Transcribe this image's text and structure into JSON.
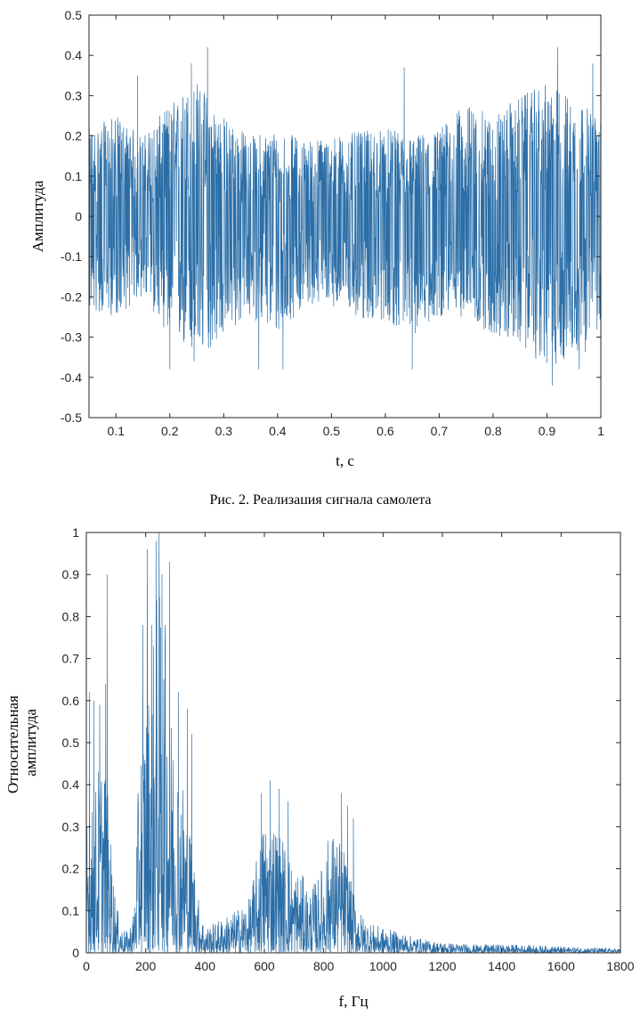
{
  "caption": "Рис. 2. Реализация сигнала самолета",
  "colors": {
    "series": "#2b6ea7",
    "axis": "#262626"
  },
  "chart_data": [
    {
      "type": "line",
      "title": "",
      "xlabel": "t, c",
      "ylabel": "Амплитуда",
      "xlim": [
        0.05,
        1
      ],
      "ylim": [
        -0.5,
        0.5
      ],
      "grid": false,
      "xticks": [
        0.1,
        0.2,
        0.3,
        0.4,
        0.5,
        0.6,
        0.7,
        0.8,
        0.9,
        1
      ],
      "xtick_labels": [
        "0.1",
        "0.2",
        "0.3",
        "0.4",
        "0.5",
        "0.6",
        "0.7",
        "0.8",
        "0.9",
        "1"
      ],
      "yticks": [
        -0.5,
        -0.4,
        -0.3,
        -0.2,
        -0.1,
        0,
        0.1,
        0.2,
        0.3,
        0.4,
        0.5
      ],
      "ytick_labels": [
        "-0.5",
        "-0.4",
        "-0.3",
        "-0.2",
        "-0.1",
        "0",
        "0.1",
        "0.2",
        "0.3",
        "0.4",
        "0.5"
      ],
      "envelope_x": [
        0.05,
        0.1,
        0.15,
        0.2,
        0.25,
        0.3,
        0.35,
        0.4,
        0.45,
        0.5,
        0.55,
        0.6,
        0.65,
        0.7,
        0.75,
        0.8,
        0.85,
        0.9,
        0.95,
        1.0
      ],
      "envelope_max": [
        0.22,
        0.25,
        0.2,
        0.28,
        0.34,
        0.25,
        0.2,
        0.22,
        0.19,
        0.2,
        0.21,
        0.22,
        0.2,
        0.22,
        0.28,
        0.25,
        0.3,
        0.33,
        0.3,
        0.24
      ],
      "envelope_min": [
        -0.24,
        -0.25,
        -0.2,
        -0.3,
        -0.36,
        -0.3,
        -0.25,
        -0.3,
        -0.22,
        -0.22,
        -0.26,
        -0.26,
        -0.3,
        -0.25,
        -0.25,
        -0.3,
        -0.32,
        -0.38,
        -0.35,
        -0.32
      ],
      "peaks": [
        [
          0.27,
          0.42
        ],
        [
          0.24,
          0.38
        ],
        [
          0.14,
          0.35
        ],
        [
          0.635,
          0.37
        ],
        [
          0.92,
          0.42
        ],
        [
          0.985,
          0.38
        ],
        [
          0.2,
          -0.38
        ],
        [
          0.245,
          -0.36
        ],
        [
          0.365,
          -0.38
        ],
        [
          0.41,
          -0.38
        ],
        [
          0.65,
          -0.38
        ],
        [
          0.91,
          -0.42
        ],
        [
          0.96,
          -0.38
        ]
      ]
    },
    {
      "type": "line",
      "title": "",
      "xlabel": "f, Гц",
      "ylabel": [
        "Относительная",
        "амплитуда"
      ],
      "xlim": [
        0,
        1800
      ],
      "ylim": [
        0,
        1
      ],
      "grid": false,
      "xticks": [
        0,
        200,
        400,
        600,
        800,
        1000,
        1200,
        1400,
        1600,
        1800
      ],
      "xtick_labels": [
        "0",
        "200",
        "400",
        "600",
        "800",
        "1000",
        "1200",
        "1400",
        "1600",
        "1800"
      ],
      "yticks": [
        0,
        0.1,
        0.2,
        0.3,
        0.4,
        0.5,
        0.6,
        0.7,
        0.8,
        0.9,
        1
      ],
      "ytick_labels": [
        "0",
        "0.1",
        "0.2",
        "0.3",
        "0.4",
        "0.5",
        "0.6",
        "0.7",
        "0.8",
        "0.9",
        "1"
      ],
      "envelope_x": [
        0,
        20,
        40,
        60,
        80,
        100,
        120,
        140,
        160,
        180,
        200,
        220,
        240,
        260,
        280,
        300,
        320,
        340,
        360,
        380,
        400,
        450,
        500,
        550,
        580,
        600,
        620,
        650,
        680,
        700,
        720,
        750,
        780,
        800,
        820,
        850,
        870,
        890,
        910,
        930,
        960,
        1000,
        1050,
        1100,
        1150,
        1200,
        1300,
        1400,
        1500,
        1600,
        1700,
        1800
      ],
      "envelope_max": [
        0.4,
        0.35,
        0.45,
        0.5,
        0.3,
        0.12,
        0.06,
        0.05,
        0.1,
        0.5,
        0.65,
        0.7,
        0.9,
        0.8,
        0.6,
        0.55,
        0.45,
        0.35,
        0.25,
        0.12,
        0.06,
        0.08,
        0.1,
        0.13,
        0.25,
        0.33,
        0.35,
        0.3,
        0.25,
        0.2,
        0.2,
        0.15,
        0.18,
        0.22,
        0.3,
        0.28,
        0.25,
        0.18,
        0.12,
        0.09,
        0.07,
        0.06,
        0.05,
        0.04,
        0.03,
        0.025,
        0.02,
        0.02,
        0.018,
        0.015,
        0.012,
        0.01
      ],
      "peaks": [
        [
          10,
          0.62
        ],
        [
          25,
          0.6
        ],
        [
          45,
          0.59
        ],
        [
          65,
          0.64
        ],
        [
          70,
          0.9
        ],
        [
          190,
          0.78
        ],
        [
          205,
          0.96
        ],
        [
          220,
          0.78
        ],
        [
          235,
          0.98
        ],
        [
          245,
          1.0
        ],
        [
          255,
          0.9
        ],
        [
          265,
          0.78
        ],
        [
          280,
          0.93
        ],
        [
          310,
          0.62
        ],
        [
          340,
          0.58
        ],
        [
          355,
          0.52
        ],
        [
          590,
          0.38
        ],
        [
          620,
          0.41
        ],
        [
          650,
          0.39
        ],
        [
          680,
          0.36
        ],
        [
          860,
          0.38
        ],
        [
          880,
          0.35
        ],
        [
          900,
          0.32
        ]
      ]
    }
  ]
}
